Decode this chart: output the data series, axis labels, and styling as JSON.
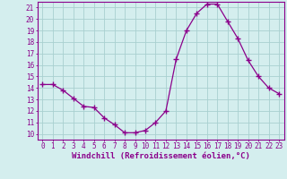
{
  "x": [
    0,
    1,
    2,
    3,
    4,
    5,
    6,
    7,
    8,
    9,
    10,
    11,
    12,
    13,
    14,
    15,
    16,
    17,
    18,
    19,
    20,
    21,
    22,
    23
  ],
  "y": [
    14.3,
    14.3,
    13.8,
    13.1,
    12.4,
    12.3,
    11.4,
    10.8,
    10.1,
    10.1,
    10.3,
    11.0,
    12.0,
    16.5,
    19.0,
    20.5,
    21.3,
    21.3,
    19.8,
    18.3,
    16.4,
    15.0,
    14.0,
    13.5
  ],
  "line_color": "#8b008b",
  "marker": "+",
  "marker_size": 4,
  "bg_color": "#d4eeee",
  "grid_color": "#a8d0d0",
  "xlabel": "Windchill (Refroidissement éolien,°C)",
  "xlim": [
    -0.5,
    23.5
  ],
  "ylim": [
    9.5,
    21.5
  ],
  "xticks": [
    0,
    1,
    2,
    3,
    4,
    5,
    6,
    7,
    8,
    9,
    10,
    11,
    12,
    13,
    14,
    15,
    16,
    17,
    18,
    19,
    20,
    21,
    22,
    23
  ],
  "yticks": [
    10,
    11,
    12,
    13,
    14,
    15,
    16,
    17,
    18,
    19,
    20,
    21
  ],
  "axis_color": "#8b008b",
  "tick_color": "#8b008b",
  "label_fontsize": 6.5,
  "tick_fontsize": 5.5
}
